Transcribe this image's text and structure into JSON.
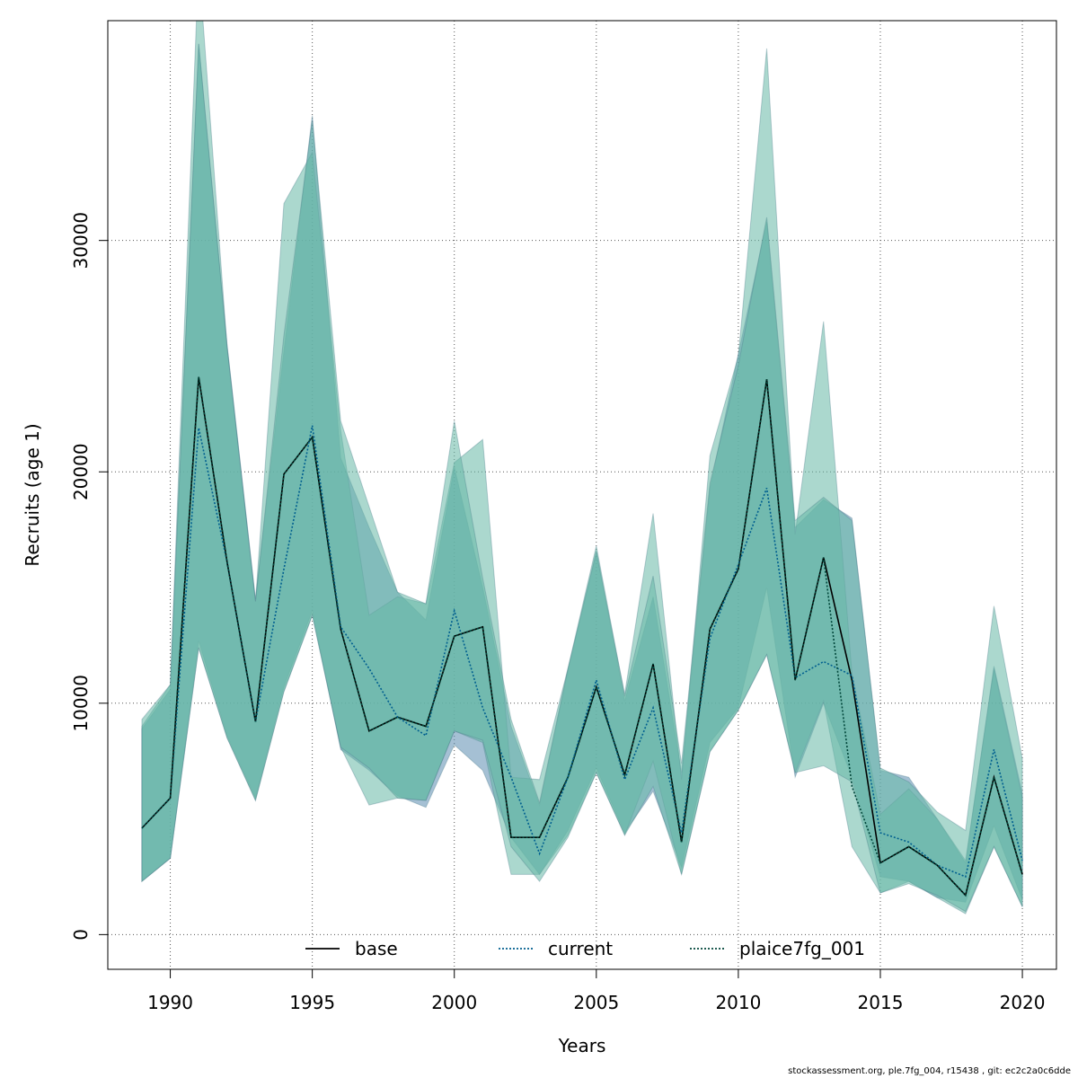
{
  "chart_data": {
    "type": "area",
    "xlabel": "Years",
    "ylabel": "Recruits (age 1)",
    "xlim": [
      1987.8,
      2021.2
    ],
    "ylim": [
      -1500,
      39500
    ],
    "x_ticks": [
      1990,
      1995,
      2000,
      2005,
      2010,
      2015,
      2020
    ],
    "y_ticks": [
      0,
      10000,
      20000,
      30000
    ],
    "grid": true,
    "legend_position": "bottom",
    "x": [
      1989,
      1990,
      1991,
      1992,
      1993,
      1994,
      1995,
      1996,
      1997,
      1998,
      1999,
      2000,
      2001,
      2002,
      2003,
      2004,
      2005,
      2006,
      2007,
      2008,
      2009,
      2010,
      2011,
      2012,
      2013,
      2014,
      2015,
      2016,
      2017,
      2018,
      2019,
      2020
    ],
    "series": [
      {
        "name": "base",
        "color": "#000000",
        "line_style": "solid",
        "values": [
          4600,
          5900,
          24100,
          16100,
          9200,
          19900,
          21500,
          13200,
          8800,
          9400,
          9000,
          12900,
          13300,
          4200,
          4200,
          6800,
          10700,
          6900,
          11700,
          4000,
          13200,
          15800,
          24000,
          11000,
          16300,
          11000,
          3100,
          3800,
          3000,
          1700,
          6800,
          2600
        ],
        "lower": [
          2300,
          3300,
          12400,
          8500,
          5800,
          10500,
          13800,
          8100,
          7200,
          5900,
          5800,
          8800,
          8400,
          3800,
          2300,
          4200,
          7000,
          4300,
          6400,
          2600,
          7900,
          9700,
          12100,
          7000,
          7300,
          6600,
          1800,
          2200,
          1700,
          1000,
          3800,
          1200
        ],
        "upper": [
          9300,
          10800,
          38500,
          25400,
          14400,
          25900,
          35200,
          22200,
          18500,
          14800,
          14300,
          22200,
          15400,
          9300,
          5700,
          11500,
          16800,
          10300,
          15500,
          7400,
          19500,
          24600,
          31000,
          17900,
          18900,
          17900,
          7200,
          6600,
          5300,
          4500,
          14200,
          7600
        ]
      },
      {
        "name": "current",
        "color": "#005f8f",
        "line_style": "dotted",
        "values": [
          4600,
          5900,
          21900,
          16100,
          9200,
          15800,
          22000,
          13300,
          11500,
          9400,
          8600,
          14000,
          9800,
          6800,
          3500,
          6800,
          11000,
          6700,
          9800,
          4400,
          12800,
          16000,
          19300,
          11100,
          11800,
          11200,
          4400,
          4000,
          3000,
          2500,
          8000,
          3200
        ],
        "lower": [
          2300,
          3300,
          12700,
          8600,
          5900,
          10700,
          14000,
          8000,
          7100,
          6000,
          5500,
          8200,
          7100,
          4200,
          2600,
          4500,
          7200,
          4400,
          6200,
          2900,
          8300,
          9800,
          15000,
          6800,
          10000,
          6800,
          2500,
          2300,
          1600,
          1400,
          4700,
          1500
        ],
        "upper": [
          8900,
          10600,
          38500,
          25500,
          14500,
          25200,
          35400,
          20600,
          17600,
          14800,
          13600,
          20200,
          15000,
          9000,
          5600,
          11400,
          16600,
          10100,
          14600,
          7000,
          19300,
          25100,
          30800,
          17600,
          18800,
          18000,
          7100,
          6800,
          5000,
          3100,
          11600,
          6100
        ]
      },
      {
        "name": "plaice7fg_001",
        "color": "#00463a",
        "line_style": "dotted",
        "values": [
          4600,
          5900,
          24100,
          16100,
          9200,
          19900,
          21500,
          13200,
          8800,
          9400,
          9000,
          12900,
          13300,
          4200,
          4200,
          6800,
          10700,
          6900,
          11700,
          4000,
          13200,
          15800,
          24000,
          11000,
          16300,
          6400,
          3100,
          3800,
          3000,
          1700,
          6800,
          2600
        ],
        "lower": [
          2300,
          3300,
          12400,
          8500,
          5800,
          10500,
          13800,
          8100,
          5600,
          5900,
          5800,
          8800,
          8300,
          2600,
          2600,
          4300,
          7000,
          4300,
          7500,
          2600,
          7900,
          9700,
          12100,
          7000,
          10100,
          3800,
          1800,
          2300,
          1600,
          900,
          3800,
          1200
        ],
        "upper": [
          9000,
          10800,
          42000,
          25400,
          14400,
          31600,
          33800,
          21800,
          13800,
          14600,
          14300,
          20400,
          21400,
          6800,
          6700,
          11500,
          16500,
          10400,
          18200,
          6700,
          20700,
          25000,
          38300,
          17300,
          26500,
          11300,
          5200,
          6300,
          5000,
          3200,
          11500,
          5900
        ]
      }
    ],
    "fill_colors": [
      "#5b8db1",
      "#66b8a6"
    ]
  },
  "footer": "stockassessment.org, ple.7fg_004, r15438 , git: ec2c2a0c6dde"
}
